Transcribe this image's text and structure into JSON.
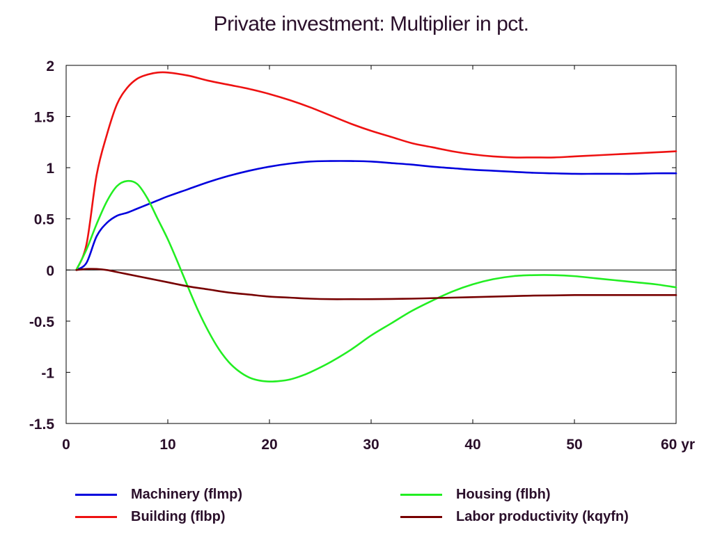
{
  "chart_data": {
    "type": "line",
    "title": "Private investment: Multiplier in pct.",
    "xlabel": "",
    "ylabel": "",
    "x_unit_label": "yr",
    "xlim": [
      0,
      60
    ],
    "ylim": [
      -1.5,
      2
    ],
    "x_ticks": [
      0,
      10,
      20,
      30,
      40,
      50,
      60
    ],
    "x_tick_labels": [
      "0",
      "10",
      "20",
      "30",
      "40",
      "50",
      "60 yr"
    ],
    "y_ticks": [
      2,
      1.5,
      1,
      0.5,
      0,
      -0.5,
      -1,
      -1.5
    ],
    "y_tick_labels": [
      "2",
      "1.5",
      "1",
      "0.5",
      "0",
      "-0.5",
      "-1",
      "-1.5"
    ],
    "grid": false,
    "zero_line": true,
    "legend_position": "bottom",
    "series": [
      {
        "name": "Machinery (flmp)",
        "color": "#0000dd",
        "x": [
          1,
          2,
          3,
          4,
          5,
          6,
          7,
          8,
          9,
          10,
          12,
          14,
          16,
          18,
          20,
          22,
          24,
          26,
          28,
          30,
          32,
          34,
          36,
          38,
          40,
          42,
          44,
          46,
          48,
          50,
          52,
          54,
          56,
          58,
          60
        ],
        "values": [
          0.0,
          0.07,
          0.33,
          0.46,
          0.53,
          0.56,
          0.6,
          0.64,
          0.68,
          0.72,
          0.79,
          0.86,
          0.92,
          0.97,
          1.01,
          1.04,
          1.06,
          1.065,
          1.065,
          1.06,
          1.045,
          1.03,
          1.01,
          0.995,
          0.98,
          0.97,
          0.96,
          0.95,
          0.945,
          0.94,
          0.94,
          0.94,
          0.94,
          0.945,
          0.945
        ]
      },
      {
        "name": "Building (flbp)",
        "color": "#ee1111",
        "x": [
          1,
          2,
          3,
          4,
          5,
          6,
          7,
          8,
          9,
          10,
          12,
          14,
          16,
          18,
          20,
          22,
          24,
          26,
          28,
          30,
          32,
          34,
          36,
          38,
          40,
          42,
          44,
          46,
          48,
          50,
          52,
          54,
          56,
          58,
          60
        ],
        "values": [
          0.0,
          0.25,
          0.93,
          1.32,
          1.62,
          1.78,
          1.87,
          1.91,
          1.93,
          1.93,
          1.9,
          1.85,
          1.81,
          1.77,
          1.72,
          1.66,
          1.59,
          1.51,
          1.43,
          1.36,
          1.3,
          1.24,
          1.2,
          1.16,
          1.13,
          1.11,
          1.1,
          1.1,
          1.1,
          1.11,
          1.12,
          1.13,
          1.14,
          1.15,
          1.16
        ]
      },
      {
        "name": "Housing (flbh)",
        "color": "#22ee22",
        "x": [
          1,
          2,
          3,
          4,
          5,
          6,
          7,
          8,
          9,
          10,
          11,
          12,
          13,
          14,
          15,
          16,
          17,
          18,
          19,
          20,
          21,
          22,
          23,
          24,
          26,
          28,
          30,
          32,
          34,
          36,
          38,
          40,
          42,
          44,
          46,
          48,
          50,
          52,
          54,
          56,
          58,
          60
        ],
        "values": [
          0.0,
          0.2,
          0.45,
          0.67,
          0.82,
          0.87,
          0.84,
          0.7,
          0.5,
          0.3,
          0.07,
          -0.17,
          -0.4,
          -0.6,
          -0.77,
          -0.9,
          -0.99,
          -1.05,
          -1.08,
          -1.09,
          -1.085,
          -1.07,
          -1.04,
          -1.0,
          -0.9,
          -0.78,
          -0.64,
          -0.52,
          -0.4,
          -0.3,
          -0.21,
          -0.14,
          -0.09,
          -0.06,
          -0.05,
          -0.05,
          -0.06,
          -0.08,
          -0.1,
          -0.12,
          -0.14,
          -0.17
        ]
      },
      {
        "name": "Labor productivity (kqyfn)",
        "color": "#770000",
        "x": [
          1,
          2,
          3,
          4,
          5,
          6,
          8,
          10,
          12,
          14,
          16,
          18,
          20,
          22,
          24,
          26,
          28,
          30,
          32,
          34,
          36,
          38,
          40,
          42,
          44,
          46,
          48,
          50,
          52,
          54,
          56,
          58,
          60
        ],
        "values": [
          0.0,
          0.01,
          0.01,
          0.0,
          -0.02,
          -0.04,
          -0.08,
          -0.12,
          -0.16,
          -0.19,
          -0.22,
          -0.24,
          -0.26,
          -0.27,
          -0.28,
          -0.285,
          -0.285,
          -0.285,
          -0.283,
          -0.28,
          -0.275,
          -0.27,
          -0.265,
          -0.26,
          -0.255,
          -0.25,
          -0.248,
          -0.245,
          -0.245,
          -0.245,
          -0.245,
          -0.245,
          -0.245
        ]
      }
    ]
  },
  "legend": {
    "items": [
      {
        "label": "Machinery (flmp)",
        "color": "#0000dd"
      },
      {
        "label": "Building (flbp)",
        "color": "#ee1111"
      },
      {
        "label": "Housing (flbh)",
        "color": "#22ee22"
      },
      {
        "label": "Labor productivity (kqyfn)",
        "color": "#770000"
      }
    ]
  }
}
